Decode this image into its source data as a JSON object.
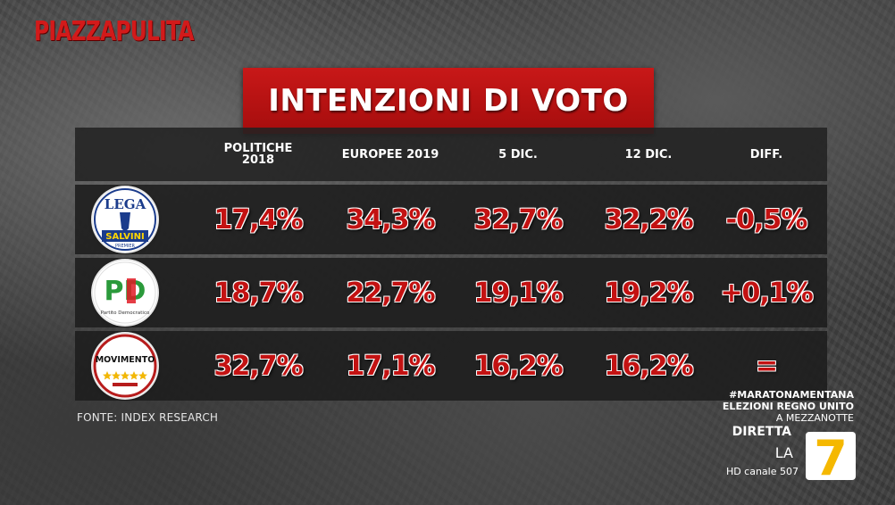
{
  "brand": "PIAZZAPULITA",
  "colors": {
    "accent": "#c31212",
    "title_bg": "#b51414",
    "row_bg": "#1e1e1e"
  },
  "chart_data": {
    "type": "table",
    "title": "INTENZIONI DI VOTO",
    "columns": [
      "POLITICHE 2018",
      "EUROPEE 2019",
      "5 DIC.",
      "12 DIC.",
      "DIFF."
    ],
    "rows": [
      {
        "party": "Lega",
        "logo": {
          "top": "LEGA",
          "bottom": "SALVINI",
          "sub": "PREMIER"
        },
        "values": [
          "17,4%",
          "34,3%",
          "32,7%",
          "32,2%",
          "-0,5%"
        ]
      },
      {
        "party": "Partito Democratico",
        "logo": {
          "top": "PD",
          "bottom": "Partito Democratico"
        },
        "values": [
          "18,7%",
          "22,7%",
          "19,1%",
          "19,2%",
          "+0,1%"
        ]
      },
      {
        "party": "MoVimento 5 Stelle",
        "logo": {
          "top": "MOVIMENTO"
        },
        "values": [
          "32,7%",
          "17,1%",
          "16,2%",
          "16,2%",
          "="
        ]
      }
    ]
  },
  "source": "FONTE: INDEX RESEARCH",
  "ticker": {
    "hashtag": "#MARATONAMENTANA",
    "line2": "ELEZIONI REGNO UNITO",
    "line3": "A MEZZANOTTE"
  },
  "broadcast": {
    "live": "DIRETTA",
    "channel": "LA",
    "channel_number": "7",
    "hd": "HD canale 507"
  }
}
